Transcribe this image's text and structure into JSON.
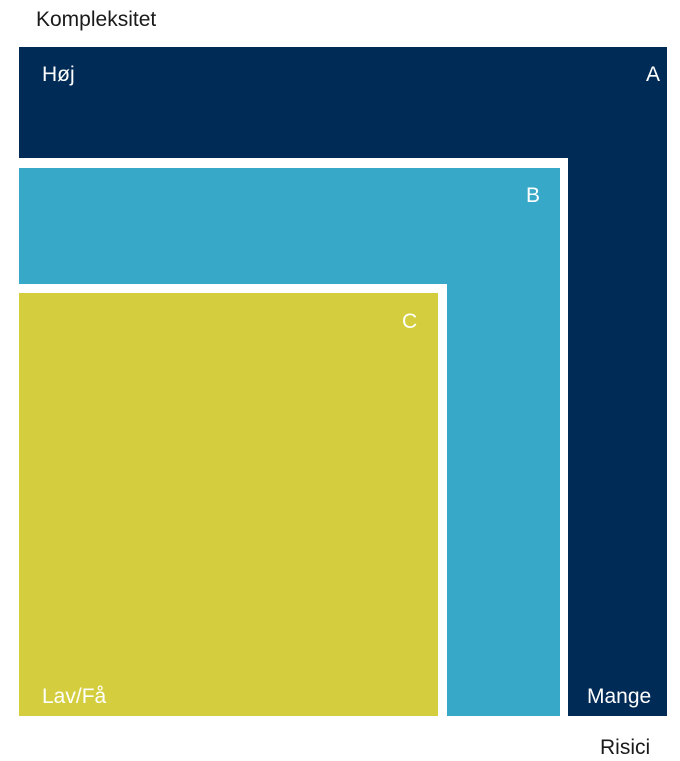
{
  "axes": {
    "y_label": "Kompleksitet",
    "x_label": "Risici",
    "high_label": "Høj",
    "low_label": "Lav/Få",
    "many_label": "Mange"
  },
  "boxes": {
    "a": {
      "label": "A",
      "color": "#002b56"
    },
    "b": {
      "label": "B",
      "color": "#38a8c9"
    },
    "c": {
      "label": "C",
      "color": "#d4ce3e"
    }
  }
}
